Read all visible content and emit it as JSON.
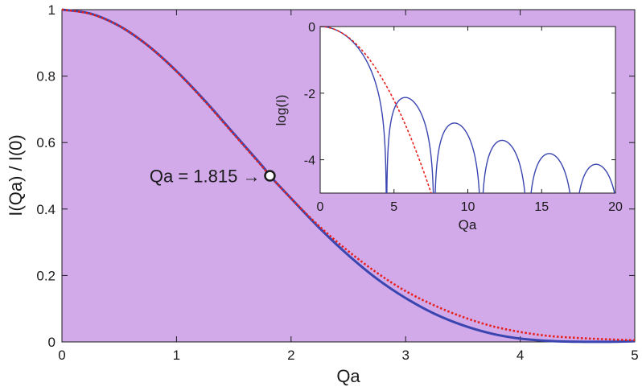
{
  "colors": {
    "panel_background": "#d2aaea",
    "inset_background": "#ffffff",
    "exact_curve": "#3a45b0",
    "approx_curve": "#e8201c",
    "axis": "#1a1a1a"
  },
  "chart_data": [
    {
      "id": "main",
      "type": "line",
      "title": "",
      "xlabel": "Qa",
      "ylabel": "I(Qa) / I(0)",
      "xlim": [
        0,
        5
      ],
      "ylim": [
        0,
        1
      ],
      "xticks": [
        0,
        1,
        2,
        3,
        4,
        5
      ],
      "xtick_labels": [
        "0",
        "1",
        "2",
        "3",
        "4",
        "5"
      ],
      "yticks": [
        0,
        0.2,
        0.4,
        0.6,
        0.8,
        1
      ],
      "ytick_labels": [
        "0",
        "0.2",
        "0.4",
        "0.6",
        "0.8",
        "1"
      ],
      "grid": false,
      "series": [
        {
          "style": "solid",
          "color": "#3a45b0",
          "x": [
            0,
            0.25,
            0.5,
            0.75,
            1.0,
            1.25,
            1.5,
            1.75,
            1.815,
            2.0,
            2.25,
            2.5,
            2.75,
            3.0,
            3.25,
            3.5,
            3.75,
            4.0,
            4.25,
            4.5,
            4.75,
            5.0
          ],
          "y": [
            1.0,
            0.988,
            0.951,
            0.892,
            0.815,
            0.725,
            0.627,
            0.529,
            0.5,
            0.432,
            0.342,
            0.261,
            0.19,
            0.132,
            0.085,
            0.05,
            0.025,
            0.01,
            0.003,
            0.0005,
            0.0004,
            0.002
          ]
        },
        {
          "style": "dotted",
          "color": "#e8201c",
          "x": [
            0,
            0.25,
            0.5,
            0.75,
            1.0,
            1.25,
            1.5,
            1.75,
            1.815,
            2.0,
            2.25,
            2.5,
            2.75,
            3.0,
            3.25,
            3.5,
            3.75,
            4.0,
            4.25,
            4.5,
            4.75,
            5.0
          ],
          "y": [
            1.0,
            0.987,
            0.951,
            0.892,
            0.814,
            0.723,
            0.625,
            0.527,
            0.5,
            0.432,
            0.347,
            0.273,
            0.208,
            0.153,
            0.11,
            0.075,
            0.048,
            0.03,
            0.018,
            0.012,
            0.008,
            0.005
          ]
        }
      ],
      "annotations": [
        {
          "text": "Qa = 1.815 →",
          "x": 1.815,
          "y": 0.5,
          "marker": "open-circle"
        }
      ]
    },
    {
      "id": "inset",
      "type": "line",
      "title": "",
      "xlabel": "Qa",
      "ylabel": "log(I)",
      "xlim": [
        0,
        20
      ],
      "ylim": [
        -5,
        0
      ],
      "xticks": [
        0,
        5,
        10,
        15,
        20
      ],
      "xtick_labels": [
        "0",
        "5",
        "10",
        "15",
        "20"
      ],
      "yticks": [
        0,
        -2,
        -4
      ],
      "ytick_labels": [
        "0",
        "-2",
        "-4"
      ],
      "grid": false,
      "series": [
        {
          "style": "solid",
          "color": "#3a45b0",
          "function": "sphere_form_factor_log10",
          "minima": [
            4.49,
            7.73,
            10.9,
            14.07,
            17.22
          ]
        },
        {
          "style": "dashed",
          "color": "#e8201c",
          "function": "guinier_log10",
          "coefficient": -0.0886
        }
      ]
    }
  ]
}
